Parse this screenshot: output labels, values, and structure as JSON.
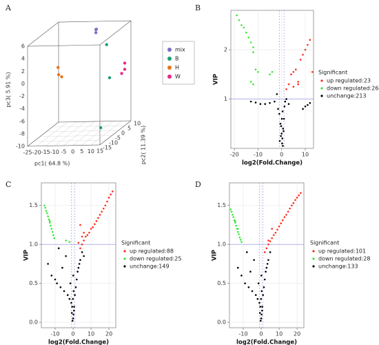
{
  "chart_data": [
    {
      "type": "scatter3d",
      "panel": "A",
      "xlabel": "pc1( 64.8 %)",
      "ylabel": "pc2( 11.39 %)",
      "zlabel": "pc3( 5.91 %)",
      "xlim": [
        -25,
        15
      ],
      "ylim": [
        -15,
        10
      ],
      "zlim": [
        -10,
        6
      ],
      "xticks": [
        -25,
        -20,
        -15,
        -10,
        -5,
        0,
        5,
        10,
        15
      ],
      "yticks": [
        -15,
        -10,
        -5,
        0,
        5,
        10
      ],
      "zticks": [
        -10,
        -8,
        -6,
        -4,
        -2,
        0,
        2,
        4,
        6
      ],
      "legend": "right",
      "series": [
        {
          "name": "mix",
          "color": "#7b6fc6",
          "x": [
            -3,
            -3,
            -2
          ],
          "y": [
            8,
            8,
            7
          ],
          "z": [
            5,
            4.5,
            5.2
          ]
        },
        {
          "name": "B",
          "color": "#1b9e77",
          "x": [
            5,
            8,
            12
          ],
          "y": [
            5,
            3,
            -10
          ],
          "z": [
            3,
            -2,
            -8
          ]
        },
        {
          "name": "H",
          "color": "#e8731b",
          "x": [
            -15,
            -14,
            -13
          ],
          "y": [
            -5,
            -6,
            -5
          ],
          "z": [
            1,
            0,
            -0.5
          ]
        },
        {
          "name": "W",
          "color": "#e7298a",
          "x": [
            15,
            15,
            14
          ],
          "y": [
            5,
            5,
            4
          ],
          "z": [
            0,
            -1,
            -1.5
          ]
        }
      ]
    },
    {
      "type": "scatter",
      "panel": "B",
      "xlabel": "log2(Fold.Change)",
      "ylabel": "VIP",
      "legend_title": "Significant",
      "xlim": [
        -21.5,
        13.5
      ],
      "ylim": [
        0,
        2.8
      ],
      "xticks": [
        -20,
        -10,
        0,
        10
      ],
      "yticks": [
        1,
        2
      ],
      "grid": true,
      "vlines": [
        -1,
        1
      ],
      "hline": 1,
      "series": [
        {
          "name": "up regulated:23",
          "color": "#ff2a1a",
          "x": [
            2,
            3,
            4,
            5,
            6,
            7,
            8,
            9,
            10,
            11,
            12,
            13,
            7,
            5
          ],
          "y": [
            1.2,
            1.3,
            1.5,
            1.55,
            1.6,
            1.3,
            1.8,
            1.9,
            2.0,
            2.1,
            2.2,
            1.55,
            1.35,
            1.25
          ]
        },
        {
          "name": "down regulated:26",
          "color": "#33e833",
          "x": [
            -19,
            -18,
            -17,
            -16,
            -15,
            -14,
            -13,
            -12,
            -12,
            -11,
            -10,
            -5,
            -13,
            -12,
            -4
          ],
          "y": [
            2.7,
            2.6,
            2.5,
            2.45,
            2.35,
            2.25,
            2.15,
            2.05,
            1.95,
            1.6,
            1.55,
            1.5,
            1.35,
            1.3,
            1.55
          ]
        },
        {
          "name": "unchange:213",
          "color": "#000000",
          "x": [
            -13,
            -11,
            -9,
            -7,
            -5,
            -3,
            -2,
            -1.5,
            -1,
            -0.5,
            0,
            0.3,
            0.6,
            1,
            1.2,
            -0.8,
            0.2,
            0.5,
            -0.3,
            0.8,
            1.5,
            2,
            3,
            9,
            10,
            11,
            12,
            0.1,
            -0.2,
            0.4
          ],
          "y": [
            0.95,
            0.93,
            0.9,
            0.9,
            0.92,
            0.95,
            1.1,
            0.8,
            0.7,
            0.5,
            0.3,
            0.2,
            0.4,
            0.6,
            0.85,
            0.15,
            0.1,
            0.05,
            0.25,
            0.35,
            0.95,
            1.0,
            0.9,
            0.8,
            0.85,
            0.88,
            0.92,
            0.6,
            0.45,
            0.75
          ]
        }
      ]
    },
    {
      "type": "scatter",
      "panel": "C",
      "xlabel": "log2(Fold.Change)",
      "ylabel": "VIP",
      "legend_title": "Significant",
      "xlim": [
        -17.7,
        23.8
      ],
      "ylim": [
        -0.07,
        1.79
      ],
      "xticks": [
        -10,
        0,
        10,
        20
      ],
      "yticks": [
        {
          "value": 0,
          "label": "0.0"
        },
        0.5,
        {
          "value": 1,
          "label": "1.0"
        },
        1.5
      ],
      "grid": true,
      "vlines": [
        -1,
        1
      ],
      "hline": 1,
      "series": [
        {
          "name": "up regulated:88",
          "color": "#ff2a1a",
          "x": [
            4,
            5,
            6,
            7,
            8,
            9,
            10,
            11,
            12,
            13,
            14,
            15,
            16,
            17,
            18,
            19,
            20,
            21,
            22,
            3,
            5,
            6,
            4
          ],
          "y": [
            0.95,
            1.0,
            1.05,
            1.1,
            1.12,
            1.15,
            1.2,
            1.22,
            1.26,
            1.3,
            1.34,
            1.38,
            1.42,
            1.46,
            1.5,
            1.55,
            1.6,
            1.64,
            1.68,
            1.02,
            1.1,
            1.15,
            1.25
          ]
        },
        {
          "name": "down regulated:25",
          "color": "#33e833",
          "x": [
            -16,
            -15.5,
            -15,
            -14.5,
            -14,
            -13.5,
            -13,
            -12.5,
            -12,
            -11.5,
            -11,
            -10.5,
            -4,
            -2,
            -13
          ],
          "y": [
            1.5,
            1.47,
            1.43,
            1.4,
            1.36,
            1.32,
            1.28,
            1.24,
            1.2,
            1.16,
            1.12,
            1.08,
            1.05,
            1.03,
            1.3
          ]
        },
        {
          "name": "unchange:149",
          "color": "#000000",
          "x": [
            -14,
            -12,
            -10,
            -9,
            -8,
            -7,
            -6,
            -5,
            -4,
            -3,
            -2,
            -1.5,
            -1,
            -0.5,
            0,
            0.2,
            0.5,
            1,
            1.5,
            2,
            3,
            4,
            5,
            6,
            -0.3,
            -0.1,
            0.1,
            0.3,
            0.6,
            -0.7,
            2.5,
            3.5
          ],
          "y": [
            0.75,
            0.6,
            0.55,
            0.5,
            0.95,
            0.45,
            0.7,
            0.4,
            0.85,
            0.35,
            0.3,
            0.5,
            0.25,
            0.2,
            0.05,
            0.1,
            0.15,
            0.35,
            0.45,
            0.55,
            0.7,
            0.8,
            0.9,
            0.85,
            0.02,
            0.3,
            0.6,
            0.4,
            0.2,
            0.12,
            0.65,
            0.75
          ]
        }
      ]
    },
    {
      "type": "scatter",
      "panel": "D",
      "xlabel": "log2(Fold.Change)",
      "ylabel": "VIP",
      "legend_title": "Significant",
      "xlim": [
        -17.7,
        23.8
      ],
      "ylim": [
        -0.07,
        1.79
      ],
      "xticks": [
        -10,
        0,
        10,
        20
      ],
      "yticks": [
        {
          "value": 0,
          "label": "0.0"
        },
        0.5,
        {
          "value": 1,
          "label": "1.0"
        },
        1.5
      ],
      "grid": true,
      "vlines": [
        -1,
        1
      ],
      "hline": 1,
      "series": [
        {
          "name": "up regulated:101",
          "color": "#ff2a1a",
          "x": [
            3,
            4,
            5,
            6,
            7,
            8,
            9,
            10,
            11,
            12,
            13,
            14,
            15,
            16,
            17,
            18,
            19,
            20,
            21,
            22,
            2,
            4,
            6
          ],
          "y": [
            0.95,
            1.0,
            1.04,
            1.08,
            1.12,
            1.15,
            1.19,
            1.23,
            1.27,
            1.31,
            1.35,
            1.38,
            1.42,
            1.46,
            1.5,
            1.53,
            1.57,
            1.6,
            1.63,
            1.66,
            0.9,
            1.05,
            1.2
          ]
        },
        {
          "name": "down regulated:28",
          "color": "#33e833",
          "x": [
            -17,
            -16.5,
            -16,
            -15.5,
            -15,
            -14.5,
            -14,
            -13.5,
            -13,
            -12.5,
            -12,
            -11.5,
            -11,
            -14.5,
            -13
          ],
          "y": [
            1.45,
            1.42,
            1.38,
            1.35,
            1.31,
            1.28,
            1.24,
            1.2,
            1.16,
            1.13,
            1.09,
            1.06,
            1.03,
            1.3,
            1.2
          ]
        },
        {
          "name": "unchange:133",
          "color": "#000000",
          "x": [
            -13,
            -11,
            -9,
            -8,
            -7,
            -6,
            -5,
            -4,
            -3,
            -2,
            -1.5,
            -1,
            -0.5,
            0,
            0.2,
            0.5,
            1,
            1.5,
            2,
            3,
            4,
            5,
            -0.3,
            -0.1,
            0.1,
            0.3,
            0.6,
            -0.7,
            2.5,
            3.5
          ],
          "y": [
            0.7,
            0.6,
            0.5,
            0.9,
            0.45,
            0.65,
            0.4,
            0.8,
            0.35,
            0.3,
            0.5,
            0.25,
            0.2,
            0.05,
            0.1,
            0.15,
            0.35,
            0.45,
            0.55,
            0.7,
            0.8,
            0.9,
            0.02,
            0.3,
            0.6,
            0.4,
            0.2,
            0.12,
            0.65,
            0.75
          ]
        }
      ]
    }
  ]
}
